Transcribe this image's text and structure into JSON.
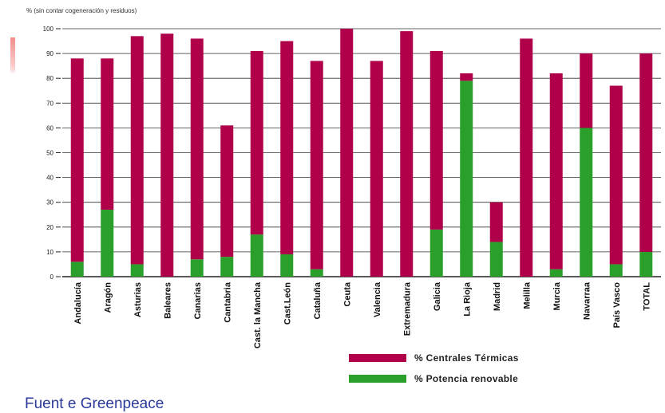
{
  "note": "% (sin contar cogeneración y residuos)",
  "source": "Fuent e   Greenpeace",
  "legend": {
    "thermal": "% Centrales Térmicas",
    "renewable": "% Potencia renovable"
  },
  "colors": {
    "thermal": "#b0004a",
    "renewable": "#2aa02a",
    "axis": "#222222",
    "grid": "#333333",
    "source": "#2b3a9a"
  },
  "chart_data": {
    "type": "bar",
    "stacked": true,
    "title": "",
    "xlabel": "",
    "ylabel": "",
    "ylim": [
      0,
      100
    ],
    "yticks": [
      0,
      10,
      20,
      30,
      40,
      50,
      60,
      70,
      80,
      90,
      100
    ],
    "grid": true,
    "legend_position": "bottom-right",
    "categories": [
      "Andalucía",
      "Aragón",
      "Asturias",
      "Baleares",
      "Canarias",
      "Cantabria",
      "Cast. la Mancha",
      "Cast.León",
      "Cataluña",
      "Ceuta",
      "Valencia",
      "Extremadura",
      "Galicia",
      "La Rioja",
      "Madrid",
      "Melilla",
      "Murcia",
      "Navarraa",
      "País Vasco",
      "TOTAL"
    ],
    "series": [
      {
        "name": "% Potencia renovable",
        "color": "#2aa02a",
        "values": [
          6,
          27,
          5,
          0,
          7,
          8,
          17,
          9,
          3,
          0,
          0,
          0,
          19,
          79,
          14,
          0,
          3,
          60,
          5,
          10
        ]
      },
      {
        "name": "% Centrales Térmicas",
        "color": "#b0004a",
        "values": [
          82,
          61,
          92,
          98,
          89,
          53,
          74,
          86,
          84,
          100,
          87,
          99,
          72,
          3,
          16,
          96,
          79,
          30,
          72,
          80
        ]
      }
    ]
  }
}
